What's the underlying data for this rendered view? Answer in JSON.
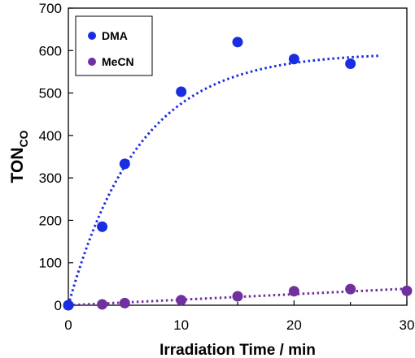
{
  "chart_data": {
    "type": "scatter",
    "xlabel": "Irradiation Time / min",
    "ylabel": "TON",
    "ylabel_subscript": "CO",
    "xlim": [
      0,
      30
    ],
    "ylim": [
      0,
      700
    ],
    "xticks": [
      "0",
      "10",
      "20",
      "30"
    ],
    "yticks": [
      "0",
      "100",
      "200",
      "300",
      "400",
      "500",
      "600",
      "700"
    ],
    "grid": false,
    "legend_position": "top-left",
    "series": [
      {
        "name": "DMA",
        "color": "#1a2de0",
        "x": [
          0,
          3,
          5,
          10,
          15,
          20,
          25
        ],
        "y": [
          0,
          185,
          333,
          503,
          620,
          580,
          569
        ],
        "fit": {
          "style": "dotted",
          "type": "exponential-saturation",
          "plateau": 595,
          "rate": 0.16,
          "x_end": 27.5
        }
      },
      {
        "name": "MeCN",
        "color": "#7030a0",
        "x": [
          0,
          3,
          5,
          10,
          15,
          20,
          25,
          30
        ],
        "y": [
          0,
          2,
          5,
          12,
          21,
          33,
          38,
          34
        ],
        "fit": {
          "style": "dotted",
          "type": "linear",
          "slope": 1.3,
          "x_end": 30
        }
      }
    ]
  }
}
